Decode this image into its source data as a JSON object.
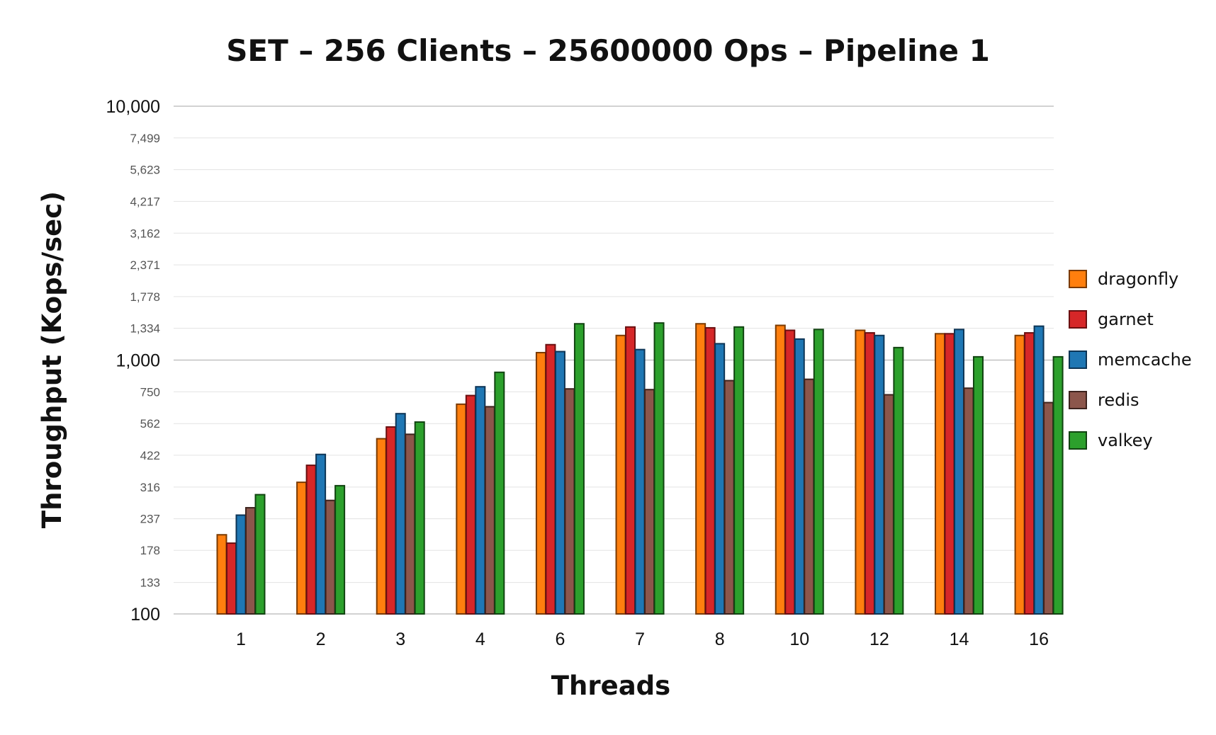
{
  "chart_data": {
    "type": "bar",
    "title": "SET – 256 Clients – 25600000 Ops – Pipeline 1",
    "xlabel": "Threads",
    "ylabel": "Throughput (Kops/sec)",
    "y_scale": "log",
    "ylim": [
      100,
      10000
    ],
    "y_ticks": [
      "10,000",
      "7,499",
      "5,623",
      "4,217",
      "3,162",
      "2,371",
      "1,778",
      "1,334",
      "1,000",
      "750",
      "562",
      "422",
      "316",
      "237",
      "178",
      "133",
      "100"
    ],
    "y_major_ticks": [
      "10,000",
      "1,000",
      "100"
    ],
    "grid": true,
    "legend_position": "right",
    "categories": [
      "1",
      "2",
      "3",
      "4",
      "6",
      "7",
      "8",
      "10",
      "12",
      "14",
      "16"
    ],
    "series": [
      {
        "name": "dragonfly",
        "color": "#ff7f0e",
        "edge": "#7a3a00",
        "values": [
          205,
          330,
          490,
          670,
          1070,
          1250,
          1390,
          1370,
          1310,
          1270,
          1250
        ]
      },
      {
        "name": "garnet",
        "color": "#d62728",
        "edge": "#6a0f10",
        "values": [
          190,
          385,
          545,
          725,
          1150,
          1350,
          1340,
          1310,
          1280,
          1270,
          1280
        ]
      },
      {
        "name": "memcache",
        "color": "#1f77b4",
        "edge": "#0d3556",
        "values": [
          245,
          425,
          615,
          785,
          1080,
          1100,
          1160,
          1210,
          1250,
          1320,
          1360
        ]
      },
      {
        "name": "redis",
        "color": "#8c564b",
        "edge": "#3d231e",
        "values": [
          262,
          280,
          510,
          655,
          770,
          765,
          830,
          840,
          730,
          775,
          680
        ]
      },
      {
        "name": "valkey",
        "color": "#2ca02c",
        "edge": "#114411",
        "values": [
          295,
          320,
          570,
          895,
          1390,
          1400,
          1350,
          1320,
          1120,
          1030,
          1030
        ]
      }
    ]
  }
}
